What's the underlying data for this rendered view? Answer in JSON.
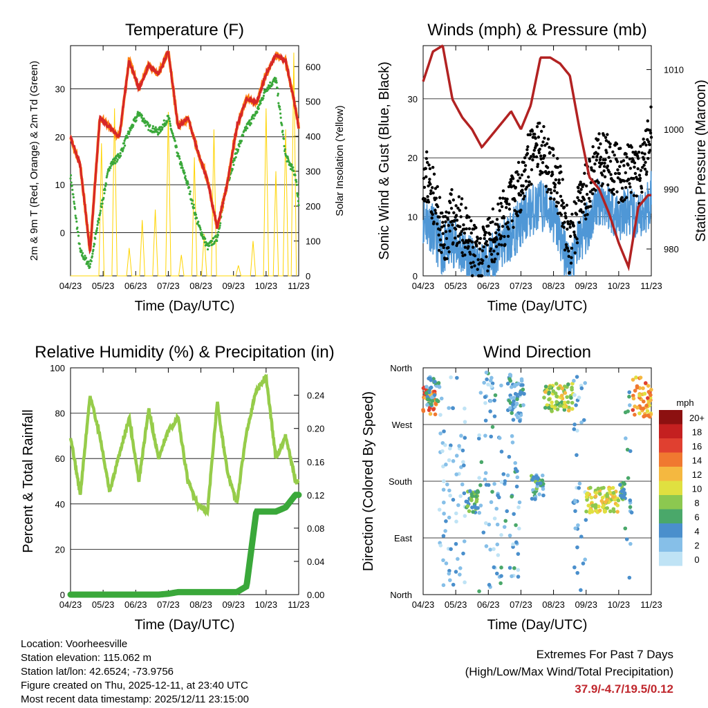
{
  "colors": {
    "temp_red": "#d62728",
    "temp_orange": "#ff7f0e",
    "dewpoint_green": "#3aa83a",
    "solar_yellow": "#ffd400",
    "wind_blue": "#4f97d6",
    "gust_black": "#000000",
    "pressure_maroon": "#b22222",
    "rh_green": "#96cc4a",
    "precip_green": "#3aa83a",
    "extremes_red": "#c0272d"
  },
  "x_ticks": [
    "04/23",
    "05/23",
    "06/23",
    "07/23",
    "08/23",
    "09/23",
    "10/23",
    "11/23"
  ],
  "x_label": "Time (Day/UTC)",
  "chart_data": [
    {
      "type": "line",
      "title": "Temperature (F)",
      "xlabel": "Time (Day/UTC)",
      "ylabel": "2m & 9m T (Red, Orange) & 2m Td (Green)",
      "y2label": "Solar Insolation (Yellow)",
      "ylim": [
        -9,
        39
      ],
      "y2lim": [
        0,
        660
      ],
      "yticks": [
        0,
        10,
        20,
        30
      ],
      "y2ticks": [
        0,
        100,
        200,
        300,
        400,
        500,
        600
      ],
      "x": [
        0,
        0.3,
        0.6,
        0.9,
        1.2,
        1.5,
        1.8,
        2.1,
        2.4,
        2.7,
        3,
        3.3,
        3.6,
        3.9,
        4.2,
        4.5,
        4.8,
        5.1,
        5.4,
        5.7,
        6,
        6.3,
        6.6,
        6.9,
        7
      ],
      "series": [
        {
          "name": "2m T",
          "values": [
            20,
            14,
            -4,
            24,
            22,
            20,
            36,
            30,
            35,
            33,
            38,
            22,
            24,
            17,
            11,
            1,
            10,
            22,
            28,
            27,
            33,
            37,
            36,
            26,
            22
          ]
        },
        {
          "name": "9m T",
          "values": [
            20,
            14,
            -4,
            24,
            22,
            20,
            36,
            30,
            35,
            33,
            38,
            22,
            24,
            17,
            11,
            1,
            10,
            22,
            28,
            27,
            33,
            37,
            36,
            26,
            22
          ]
        },
        {
          "name": "2m Td",
          "values": [
            12,
            -4,
            -7,
            4,
            14,
            16,
            21,
            25,
            22,
            21,
            24,
            16,
            10,
            2,
            -3,
            -1,
            10,
            17,
            22,
            25,
            30,
            32,
            16,
            12,
            6
          ]
        },
        {
          "name": "Solar Insolation",
          "peaks": [
            {
              "x": 0.95,
              "v": 380
            },
            {
              "x": 1.35,
              "v": 480
            },
            {
              "x": 1.8,
              "v": 80
            },
            {
              "x": 2.2,
              "v": 160
            },
            {
              "x": 2.6,
              "v": 190
            },
            {
              "x": 3,
              "v": 470
            },
            {
              "x": 3.4,
              "v": 60
            },
            {
              "x": 3.8,
              "v": 340
            },
            {
              "x": 4.1,
              "v": 120
            },
            {
              "x": 4.4,
              "v": 420
            },
            {
              "x": 5.15,
              "v": 30
            },
            {
              "x": 5.6,
              "v": 100
            },
            {
              "x": 6,
              "v": 480
            },
            {
              "x": 6.3,
              "v": 300
            },
            {
              "x": 6.6,
              "v": 420
            },
            {
              "x": 6.85,
              "v": 640
            }
          ]
        }
      ]
    },
    {
      "type": "line",
      "title": "Winds (mph) & Pressure (mb)",
      "xlabel": "Time (Day/UTC)",
      "ylabel": "Sonic Wind & Gust (Blue, Black)",
      "y2label": "Station Pressure (Maroon)",
      "ylim": [
        0,
        39
      ],
      "y2lim": [
        975.5,
        1014
      ],
      "yticks": [
        0,
        10,
        20,
        30
      ],
      "y2ticks": [
        980,
        990,
        1000,
        1010
      ],
      "x": [
        0,
        0.3,
        0.6,
        0.9,
        1.2,
        1.5,
        1.8,
        2.1,
        2.4,
        2.7,
        3,
        3.3,
        3.6,
        3.9,
        4.2,
        4.5,
        4.8,
        5.1,
        5.4,
        5.7,
        6,
        6.3,
        6.6,
        6.9,
        7
      ],
      "series": [
        {
          "name": "Sonic Wind",
          "values": [
            10,
            8,
            4,
            6,
            4,
            2,
            1,
            3,
            5,
            7,
            9,
            11,
            12,
            11,
            7,
            1,
            6,
            9,
            13,
            12,
            10,
            11,
            9,
            12,
            14
          ]
        },
        {
          "name": "Gust",
          "values": [
            18,
            14,
            6,
            10,
            8,
            4,
            3,
            6,
            9,
            12,
            16,
            20,
            22,
            18,
            14,
            4,
            12,
            16,
            20,
            19,
            17,
            18,
            16,
            22,
            28
          ]
        },
        {
          "name": "Station Pressure",
          "values": [
            1008,
            1013,
            1014,
            1005,
            1002,
            1000,
            997,
            999,
            1001,
            1003,
            1000,
            1004,
            1012,
            1012,
            1011,
            1009,
            1000,
            992,
            990,
            986,
            981,
            977,
            987,
            989,
            989
          ]
        }
      ]
    },
    {
      "type": "line",
      "title": "Relative Humidity (%) & Precipitation (in)",
      "xlabel": "Time (Day/UTC)",
      "ylabel": "Percent & Total Rainfall",
      "ylim": [
        0,
        100
      ],
      "y2lim": [
        0,
        0.273
      ],
      "yticks": [
        0,
        20,
        40,
        60,
        80,
        100
      ],
      "y2ticks": [
        0.0,
        0.04,
        0.08,
        0.12,
        0.16,
        0.2,
        0.24
      ],
      "y2ticklabels": [
        "0.00",
        "0.04",
        "0.08",
        "0.12",
        "0.16",
        "0.20",
        "0.24"
      ],
      "x": [
        0,
        0.3,
        0.6,
        0.9,
        1.2,
        1.5,
        1.8,
        2.1,
        2.4,
        2.7,
        3,
        3.3,
        3.6,
        3.9,
        4.2,
        4.5,
        4.8,
        5.1,
        5.4,
        5.7,
        6,
        6.3,
        6.6,
        6.9,
        7
      ],
      "series": [
        {
          "name": "Relative Humidity",
          "values": [
            70,
            44,
            88,
            70,
            45,
            62,
            78,
            50,
            82,
            60,
            72,
            78,
            50,
            40,
            36,
            85,
            55,
            40,
            72,
            90,
            96,
            60,
            70,
            50,
            50
          ]
        },
        {
          "name": "Total Rainfall",
          "values": [
            0,
            0,
            0,
            0,
            0,
            0,
            0,
            0,
            0,
            0,
            0.001,
            0.003,
            0.003,
            0.003,
            0.003,
            0.003,
            0.003,
            0.003,
            0.01,
            0.1,
            0.1,
            0.1,
            0.105,
            0.12,
            0.12
          ]
        }
      ]
    },
    {
      "type": "scatter",
      "title": "Wind Direction",
      "xlabel": "Time (Day/UTC)",
      "ylabel": "Direction (Colored By Speed)",
      "ylim": [
        0,
        360
      ],
      "ytickvalues": [
        0,
        90,
        180,
        270,
        360
      ],
      "yticklabels": [
        "North",
        "East",
        "South",
        "West",
        "North"
      ],
      "colorbar": {
        "title": "mph",
        "labels": [
          "0",
          "2",
          "4",
          "6",
          "8",
          "10",
          "12",
          "14",
          "16",
          "18",
          "20+"
        ],
        "colors": [
          "#bfe3f5",
          "#86bfe8",
          "#4a8fcc",
          "#4aa86a",
          "#8cc850",
          "#e0e040",
          "#f5b840",
          "#f07830",
          "#e04030",
          "#c42020",
          "#8c1010"
        ]
      },
      "clusters": [
        {
          "x0": 0,
          "x1": 0.4,
          "d0": 285,
          "d1": 330,
          "s": 14
        },
        {
          "x0": 0.1,
          "x1": 0.5,
          "d0": 300,
          "d1": 350,
          "s": 4
        },
        {
          "x0": 0.5,
          "x1": 1.3,
          "d0": 10,
          "d1": 350,
          "s": 2
        },
        {
          "x0": 1.3,
          "x1": 1.7,
          "d0": 130,
          "d1": 165,
          "s": 6
        },
        {
          "x0": 1.7,
          "x1": 3,
          "d0": 5,
          "d1": 355,
          "s": 3
        },
        {
          "x0": 2.6,
          "x1": 3.1,
          "d0": 280,
          "d1": 355,
          "s": 4
        },
        {
          "x0": 3.3,
          "x1": 3.7,
          "d0": 150,
          "d1": 190,
          "s": 5
        },
        {
          "x0": 3.7,
          "x1": 4.6,
          "d0": 290,
          "d1": 335,
          "s": 9
        },
        {
          "x0": 4.6,
          "x1": 5,
          "d0": 5,
          "d1": 355,
          "s": 2
        },
        {
          "x0": 5,
          "x1": 6,
          "d0": 130,
          "d1": 170,
          "s": 10
        },
        {
          "x0": 6,
          "x1": 6.2,
          "d0": 150,
          "d1": 180,
          "s": 6
        },
        {
          "x0": 6.2,
          "x1": 6.4,
          "d0": 20,
          "d1": 330,
          "s": 4
        },
        {
          "x0": 6.4,
          "x1": 7,
          "d0": 280,
          "d1": 345,
          "s": 13
        }
      ]
    }
  ],
  "station_info": [
    "Location: Voorheesville",
    "Station elevation: 115.062 m",
    "Station lat/lon: 42.6524; -73.9756",
    "Figure created on Thu, 2025-12-11, at 23:40 UTC",
    "Most recent data timestamp: 2025/12/11 23:15:00"
  ],
  "extremes": {
    "heading": "Extremes For Past 7 Days",
    "subheading": "(High/Low/Max Wind/Total Precipitation)",
    "values": "37.9/-4.7/19.5/0.12"
  }
}
